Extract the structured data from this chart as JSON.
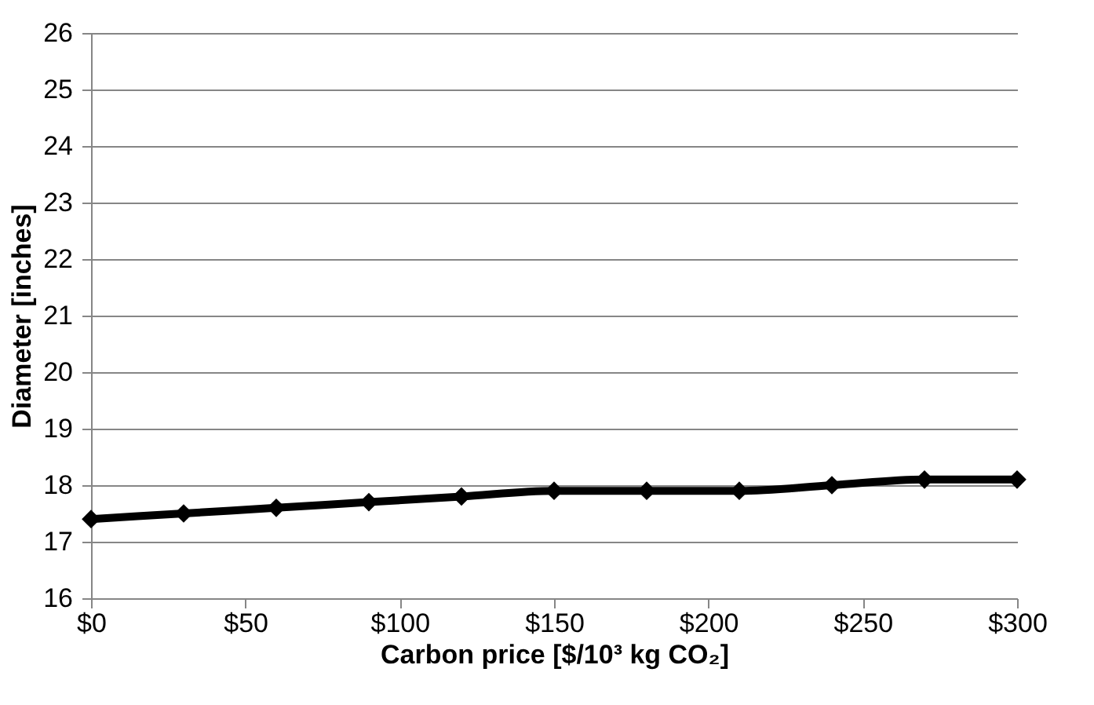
{
  "chart_data": {
    "type": "line",
    "xlabel": "Carbon price [$/10³ kg CO₂]",
    "ylabel": "Diameter [inches]",
    "x": [
      0,
      30,
      60,
      90,
      120,
      150,
      180,
      210,
      240,
      270,
      300
    ],
    "series": [
      {
        "color": "#000000",
        "values": [
          17.4,
          17.5,
          17.6,
          17.7,
          17.8,
          17.9,
          17.9,
          17.9,
          18.0,
          18.1,
          18.1
        ]
      }
    ],
    "xlim": [
      0,
      300
    ],
    "xticks": [
      {
        "value": 0,
        "label": "$0"
      },
      {
        "value": 50,
        "label": "$50"
      },
      {
        "value": 100,
        "label": "$100"
      },
      {
        "value": 150,
        "label": "$150"
      },
      {
        "value": 200,
        "label": "$200"
      },
      {
        "value": 250,
        "label": "$250"
      },
      {
        "value": 300,
        "label": "$300"
      }
    ],
    "ylim": [
      16,
      26
    ],
    "yticks": [
      16,
      17,
      18,
      19,
      20,
      21,
      22,
      23,
      24,
      25,
      26
    ],
    "grid": "y",
    "marker": "diamond",
    "line_style": "solid"
  }
}
